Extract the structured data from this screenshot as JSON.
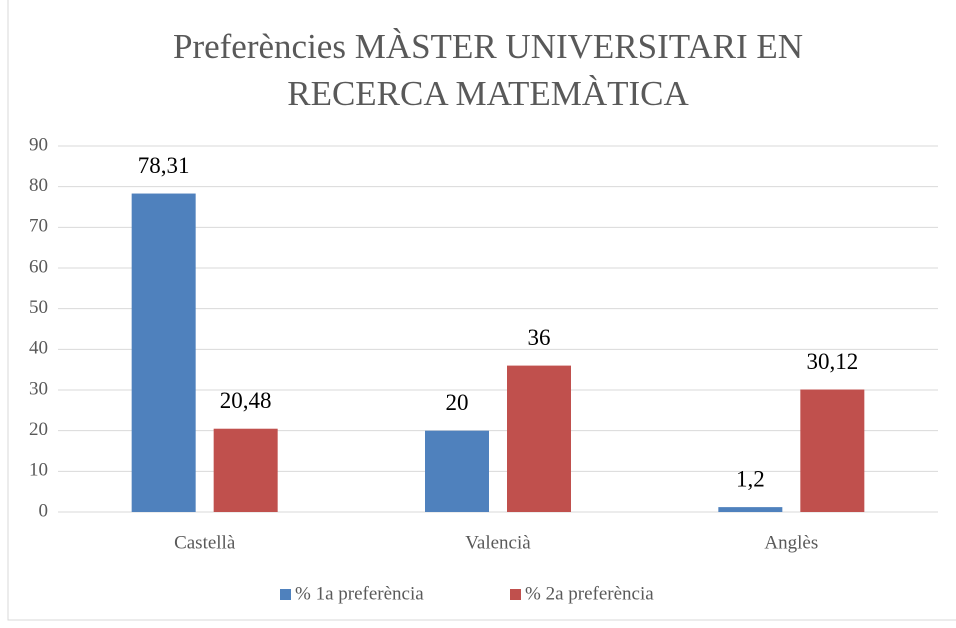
{
  "chart_data": {
    "type": "bar",
    "title": [
      "Preferències MÀSTER UNIVERSITARI EN",
      "RECERCA MATEMÀTICA"
    ],
    "categories": [
      "Castellà",
      "Valencià",
      "Anglès"
    ],
    "series": [
      {
        "name": "% 1a preferència",
        "color": "#4f81bd",
        "values": [
          78.31,
          20,
          1.2
        ],
        "value_labels": [
          "78,31",
          "20",
          "1,2"
        ]
      },
      {
        "name": "% 2a preferència",
        "color": "#c0504d",
        "values": [
          20.48,
          36,
          30.12
        ],
        "value_labels": [
          "20,48",
          "36",
          "30,12"
        ]
      }
    ],
    "ylim": [
      0,
      90
    ],
    "yticks": [
      0,
      10,
      20,
      30,
      40,
      50,
      60,
      70,
      80,
      90
    ],
    "grid": true,
    "legend": "bottom"
  }
}
